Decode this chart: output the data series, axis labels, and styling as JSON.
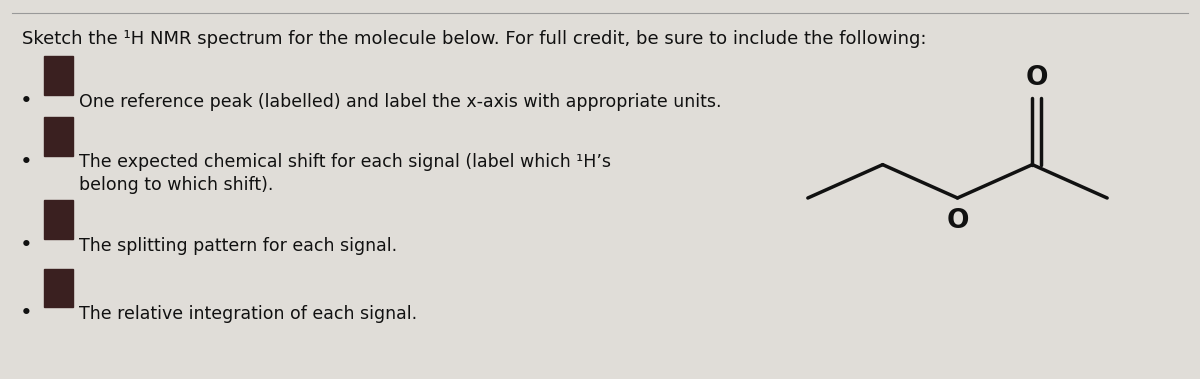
{
  "background_color": "#e0ddd8",
  "title_text": "Sketch the ¹H NMR spectrum for the molecule below. For full credit, be sure to include the following:",
  "title_fontsize": 13.0,
  "bullet_points": [
    "One reference peak (labelled) and label the x-axis with appropriate units.",
    "The expected chemical shift for each signal (label which ¹H’s\nbelong to which shift).",
    "The splitting pattern for each signal.",
    "The relative integration of each signal."
  ],
  "bullet_fontsize": 12.5,
  "text_color": "#111111",
  "divider_color": "#999999",
  "molecule_color": "#111111",
  "icon_color": "#3a2020"
}
